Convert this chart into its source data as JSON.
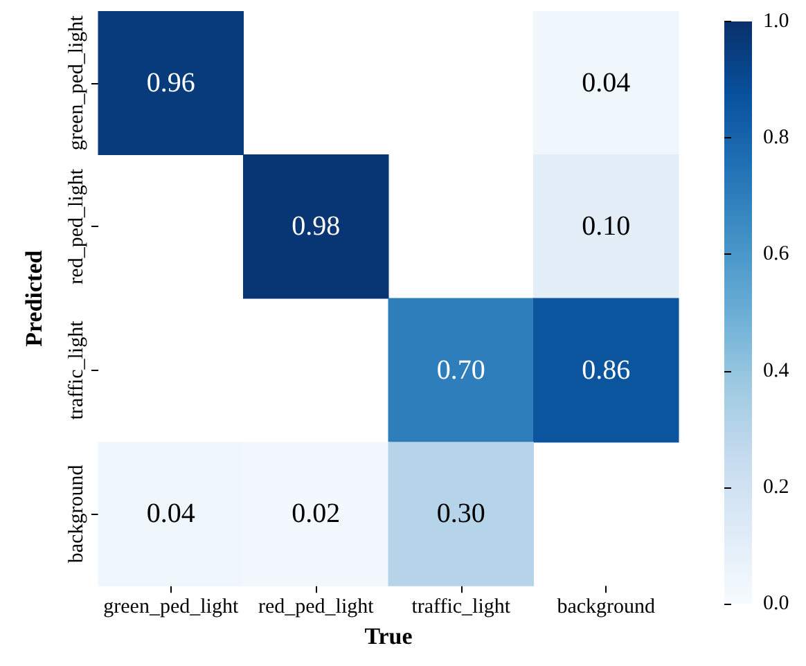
{
  "chart_data": {
    "type": "heatmap",
    "xlabel": "True",
    "ylabel": "Predicted",
    "categories": [
      "green_ped_light",
      "red_ped_light",
      "traffic_light",
      "background"
    ],
    "y_categories": [
      "green_ped_light",
      "red_ped_light",
      "traffic_light",
      "background"
    ],
    "cells": [
      [
        0.96,
        null,
        null,
        0.04
      ],
      [
        null,
        0.98,
        null,
        0.1
      ],
      [
        null,
        null,
        0.7,
        0.86
      ],
      [
        0.04,
        0.02,
        0.3,
        null
      ]
    ],
    "cell_labels": [
      [
        "0.96",
        null,
        null,
        "0.04"
      ],
      [
        null,
        "0.98",
        null,
        "0.10"
      ],
      [
        null,
        null,
        "0.70",
        "0.86"
      ],
      [
        "0.04",
        "0.02",
        "0.30",
        null
      ]
    ],
    "clim": [
      0,
      1
    ],
    "cticks": [
      {
        "value": 0,
        "label": "0.0"
      },
      {
        "value": 0.2,
        "label": "0.2"
      },
      {
        "value": 0.4,
        "label": "0.4"
      },
      {
        "value": 0.6,
        "label": "0.6"
      },
      {
        "value": 0.8,
        "label": "0.8"
      },
      {
        "value": 1,
        "label": "1.0"
      }
    ]
  }
}
